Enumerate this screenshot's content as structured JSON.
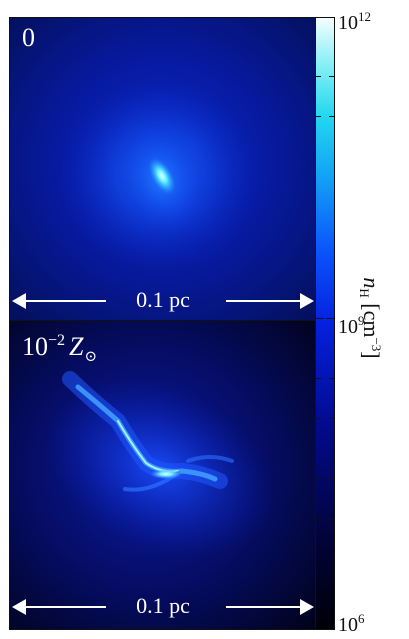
{
  "panels": [
    {
      "label": "0",
      "scale_label": "0.1 pc"
    },
    {
      "label_base": "10",
      "label_exp": "−2",
      "label_var": "Z",
      "label_sub": "⊙",
      "scale_label": "0.1 pc"
    }
  ],
  "colorbar": {
    "tick_labels": [
      {
        "base": "10",
        "exp": "12"
      },
      {
        "base": "10",
        "exp": "9"
      },
      {
        "base": "10",
        "exp": "6"
      }
    ],
    "title_var": "n",
    "title_sub": "H",
    "title_unit": "[cm",
    "title_exp": "−3",
    "title_close": "]",
    "scale": "log",
    "colors": [
      "#000008",
      "#020a8c",
      "#0520e0",
      "#12a2f5",
      "#8ff1f6",
      "#f4fdff"
    ]
  }
}
